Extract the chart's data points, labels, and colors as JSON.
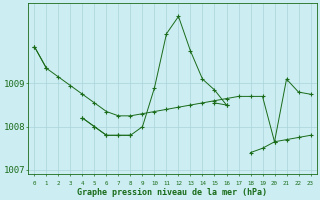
{
  "title": "Graphe pression niveau de la mer (hPa)",
  "bg_color": "#cceef2",
  "grid_color": "#aad4d8",
  "line_color": "#1a6b1a",
  "hours": [
    0,
    1,
    2,
    3,
    4,
    5,
    6,
    7,
    8,
    9,
    10,
    11,
    12,
    13,
    14,
    15,
    16,
    17,
    18,
    19,
    20,
    21,
    22,
    23
  ],
  "s1": [
    1009.85,
    1009.35,
    1009.15,
    1008.95,
    1008.75,
    1008.55,
    1008.35,
    1008.25,
    1008.25,
    1008.3,
    1008.35,
    1008.4,
    1008.45,
    1008.5,
    1008.55,
    1008.6,
    1008.65,
    1008.7,
    1008.7,
    1008.7,
    1007.65,
    1007.7,
    1007.75,
    1007.8
  ],
  "s2": [
    1009.85,
    1009.35,
    null,
    null,
    1008.2,
    1008.0,
    1007.8,
    1007.8,
    1007.8,
    1008.0,
    1008.9,
    1010.15,
    1010.55,
    1009.75,
    1009.1,
    1008.85,
    1008.5,
    null,
    null,
    null,
    null,
    null,
    null,
    null
  ],
  "s3": [
    null,
    null,
    null,
    null,
    1008.2,
    1008.0,
    1007.8,
    1007.8,
    1007.8,
    null,
    null,
    null,
    null,
    null,
    null,
    1008.55,
    1008.5,
    null,
    1007.4,
    1007.5,
    1007.65,
    1009.1,
    1008.8,
    1008.75
  ],
  "ylim": [
    1006.9,
    1010.85
  ],
  "yticks": [
    1007,
    1008,
    1009
  ],
  "xlim": [
    -0.5,
    23.5
  ]
}
